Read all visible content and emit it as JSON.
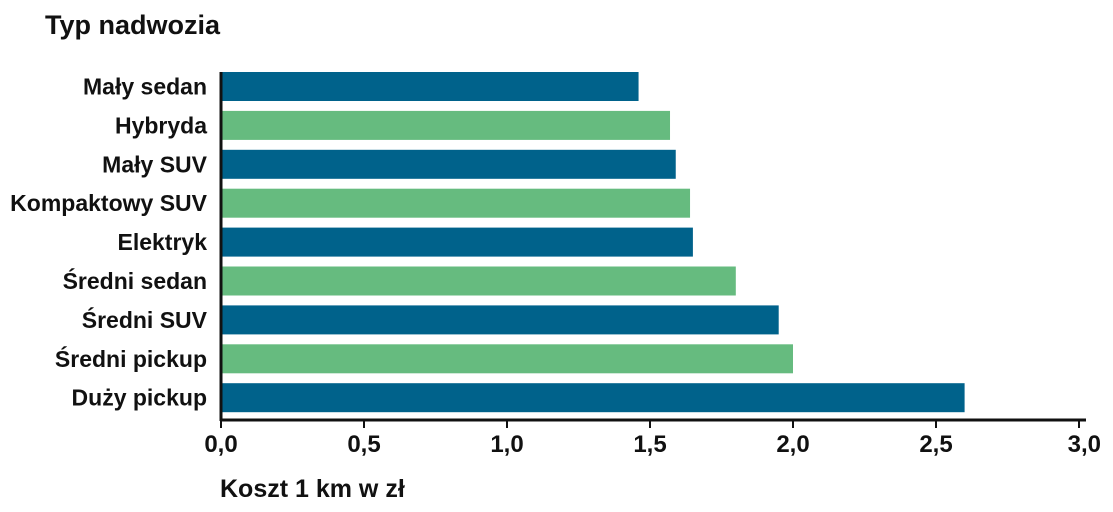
{
  "chart_data": {
    "type": "bar",
    "orientation": "horizontal",
    "title": "Typ nadwozia",
    "xlabel": "Koszt 1 km w zł",
    "categories": [
      "Mały sedan",
      "Hybryda",
      "Mały SUV",
      "Kompaktowy SUV",
      "Elektryk",
      "Średni sedan",
      "Średni SUV",
      "Średni pickup",
      "Duży pickup"
    ],
    "values": [
      1.46,
      1.57,
      1.59,
      1.64,
      1.65,
      1.8,
      1.95,
      2.0,
      2.6
    ],
    "xlim": [
      0,
      3.0
    ],
    "xticks": [
      "0,0",
      "0,5",
      "1,0",
      "1,5",
      "2,0",
      "2,5",
      "3,0"
    ],
    "colors": [
      "#00628b",
      "#66bb7f"
    ],
    "grid": false,
    "legend": "none"
  }
}
